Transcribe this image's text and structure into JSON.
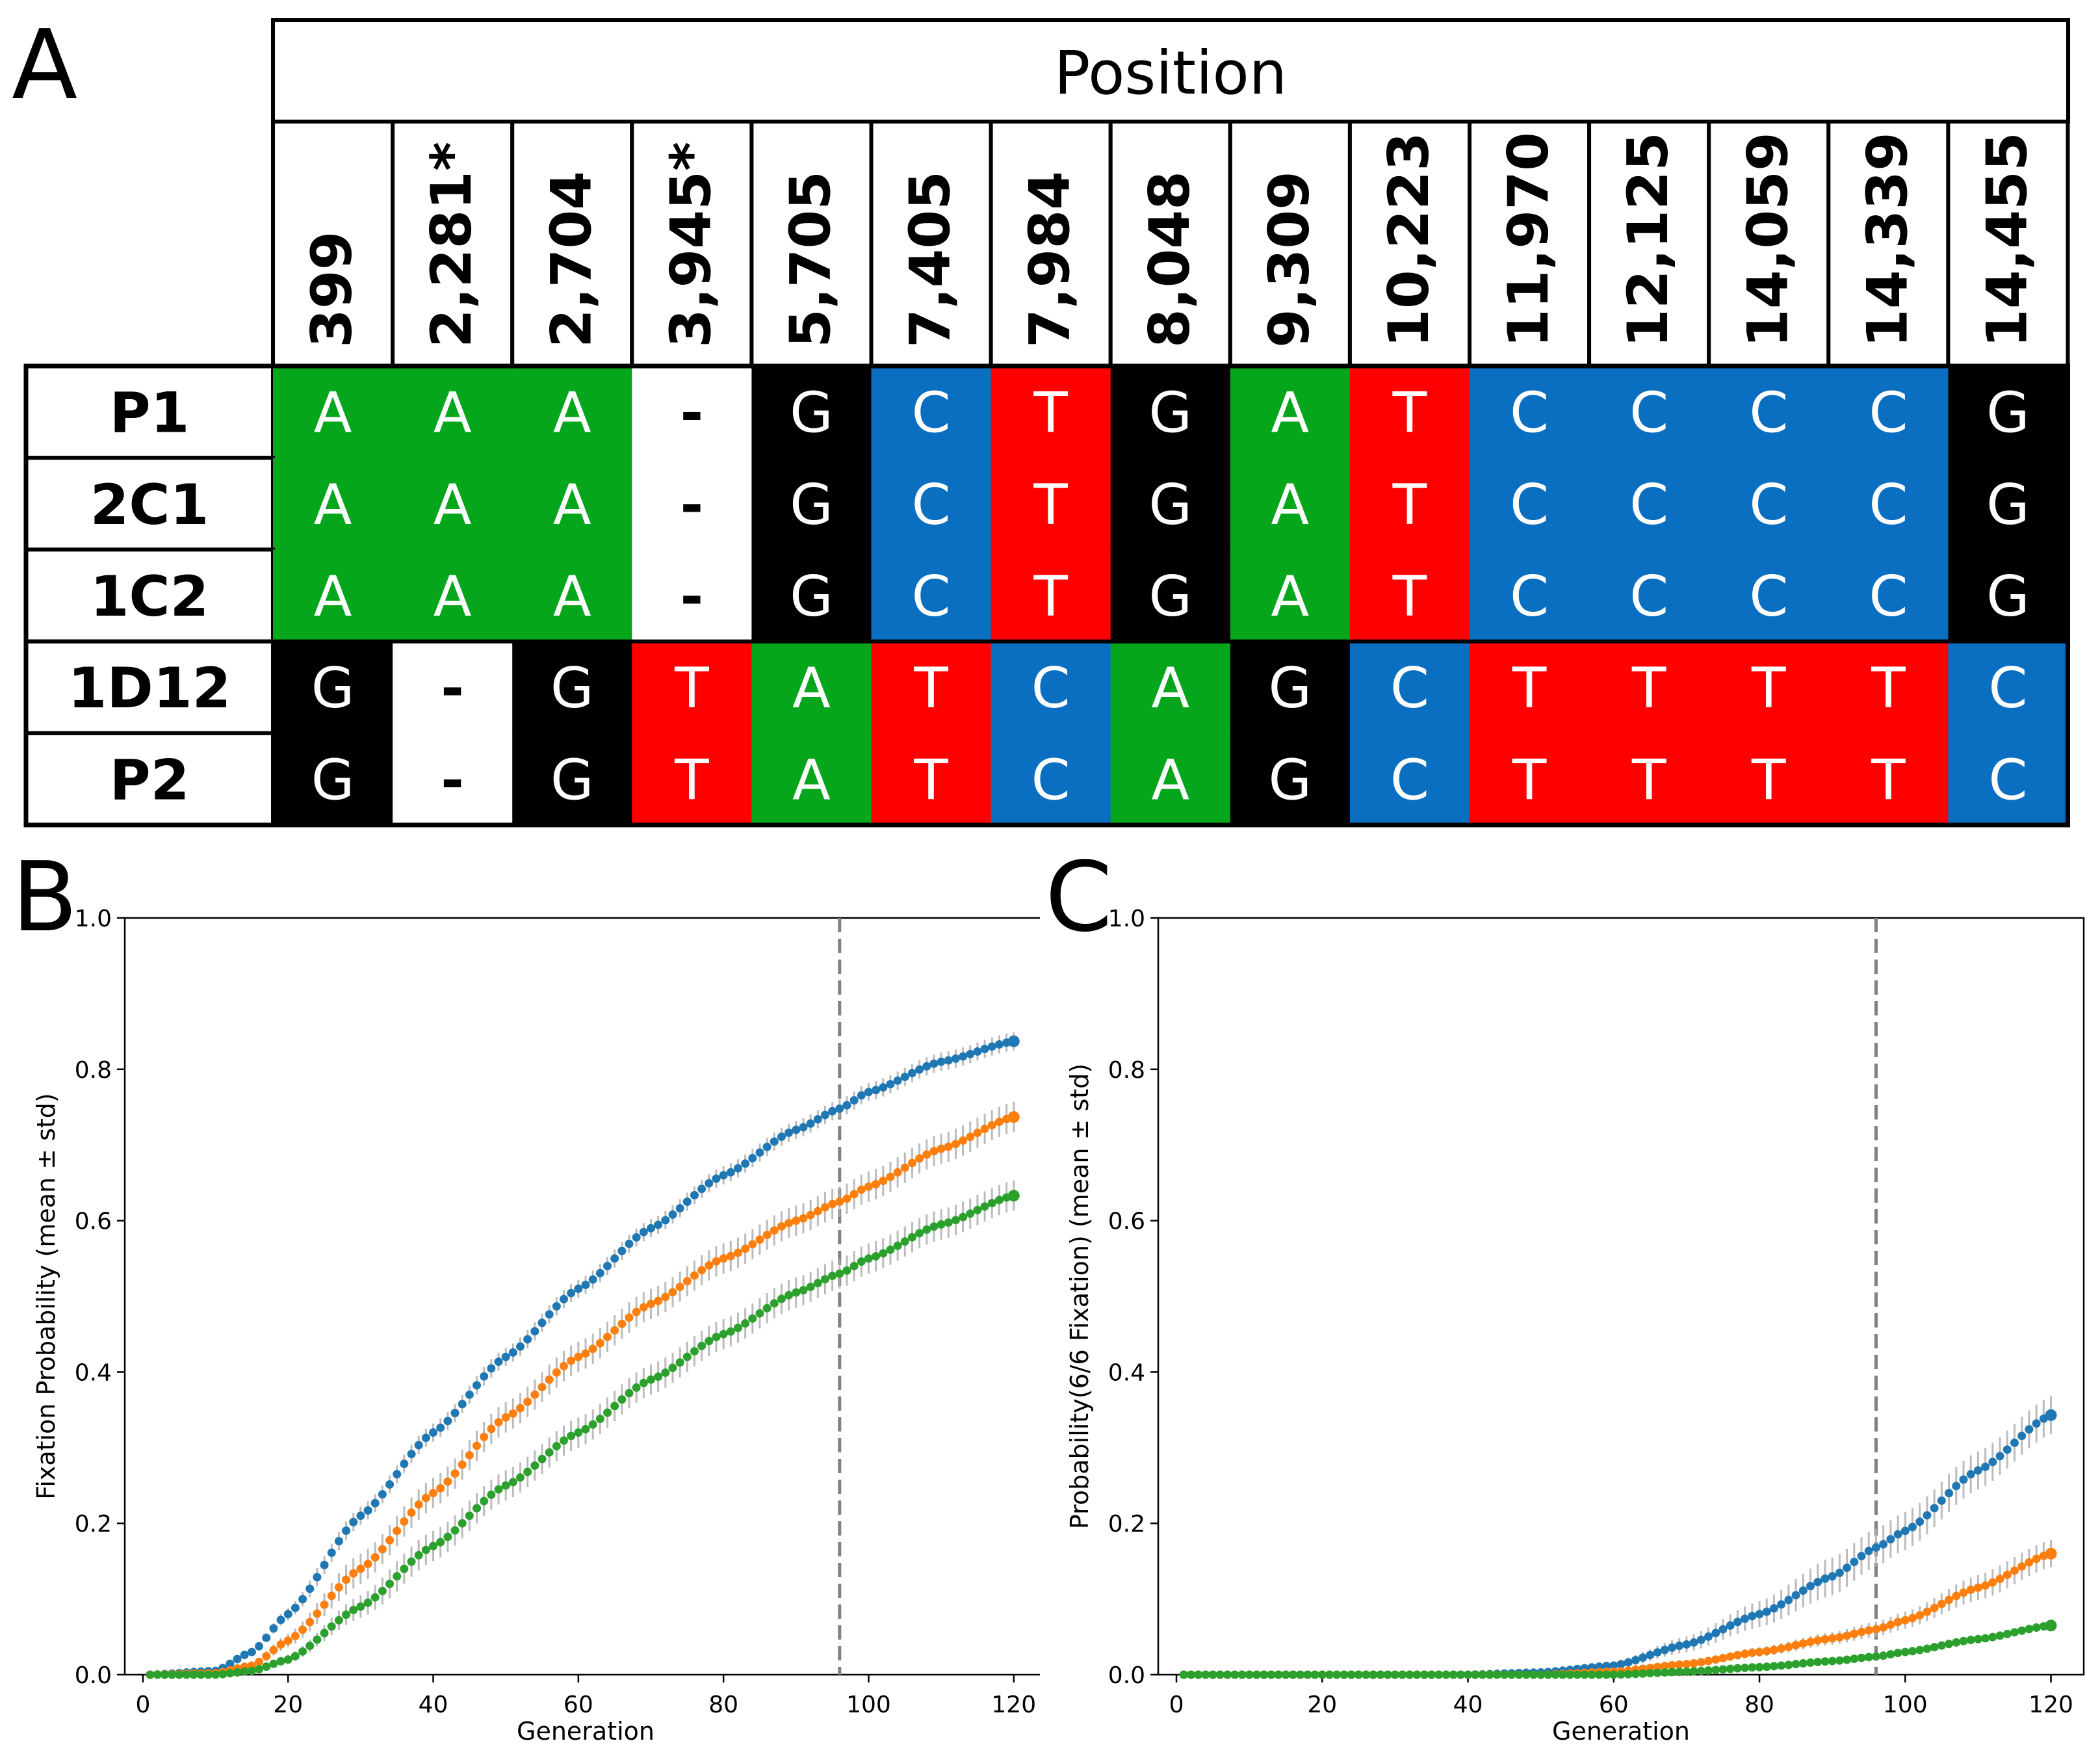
{
  "panel_labels": {
    "a": "A",
    "b": "B",
    "c": "C"
  },
  "colors": {
    "A": "#05a51c",
    "C": "#0a6ec1",
    "G": "#000000",
    "T": "#ff0000",
    "-": "#ffffff",
    "blue": "#1f77b4",
    "orange": "#ff7f0e",
    "green": "#2ca02c",
    "err": "#b0b0b0",
    "vline": "#808080"
  },
  "table": {
    "header": "Position",
    "positions": [
      "399",
      "2,281*",
      "2,704",
      "3,945*",
      "5,705",
      "7,405",
      "7,984",
      "8,048",
      "9,309",
      "10,223",
      "11,970",
      "12,125",
      "14,059",
      "14,339",
      "14,455"
    ],
    "rows": [
      {
        "label": "P1",
        "bases": [
          "A",
          "A",
          "A",
          "-",
          "G",
          "C",
          "T",
          "G",
          "A",
          "T",
          "C",
          "C",
          "C",
          "C",
          "G"
        ]
      },
      {
        "label": "2C1",
        "bases": [
          "A",
          "A",
          "A",
          "-",
          "G",
          "C",
          "T",
          "G",
          "A",
          "T",
          "C",
          "C",
          "C",
          "C",
          "G"
        ]
      },
      {
        "label": "1C2",
        "bases": [
          "A",
          "A",
          "A",
          "-",
          "G",
          "C",
          "T",
          "G",
          "A",
          "T",
          "C",
          "C",
          "C",
          "C",
          "G"
        ]
      },
      {
        "label": "1D12",
        "bases": [
          "G",
          "-",
          "G",
          "T",
          "A",
          "T",
          "C",
          "A",
          "G",
          "C",
          "T",
          "T",
          "T",
          "T",
          "C"
        ]
      },
      {
        "label": "P2",
        "bases": [
          "G",
          "-",
          "G",
          "T",
          "A",
          "T",
          "C",
          "A",
          "G",
          "C",
          "T",
          "T",
          "T",
          "T",
          "C"
        ]
      }
    ]
  },
  "chart_data": [
    {
      "type": "scatter",
      "panel": "B",
      "xlabel": "Generation",
      "ylabel": "Fixation Probability (mean ± std)",
      "xlim": [
        -2.5,
        124.5
      ],
      "ylim": [
        0,
        1.0
      ],
      "xticks": [
        0,
        20,
        40,
        60,
        80,
        100,
        120
      ],
      "yticks": [
        0.0,
        0.2,
        0.4,
        0.6,
        0.8,
        1.0
      ],
      "ytick_labels": [
        "0.0",
        "0.2",
        "0.4",
        "0.6",
        "0.8",
        "1.0"
      ],
      "vline_x": 96,
      "generations": [
        1,
        120
      ],
      "series": [
        {
          "name": "blue",
          "color": "blue",
          "points": [
            [
              1,
              0
            ],
            [
              10,
              0.005
            ],
            [
              15,
              0.03
            ],
            [
              20,
              0.08
            ],
            [
              30,
              0.21
            ],
            [
              40,
              0.32
            ],
            [
              50,
              0.42
            ],
            [
              60,
              0.51
            ],
            [
              70,
              0.59
            ],
            [
              80,
              0.66
            ],
            [
              90,
              0.72
            ],
            [
              96,
              0.748
            ],
            [
              100,
              0.77
            ],
            [
              110,
              0.81
            ],
            [
              120,
              0.837
            ]
          ],
          "std": 0.012
        },
        {
          "name": "orange",
          "color": "orange",
          "points": [
            [
              1,
              0
            ],
            [
              10,
              0.002
            ],
            [
              15,
              0.012
            ],
            [
              20,
              0.045
            ],
            [
              30,
              0.14
            ],
            [
              40,
              0.24
            ],
            [
              50,
              0.34
            ],
            [
              60,
              0.42
            ],
            [
              70,
              0.49
            ],
            [
              80,
              0.55
            ],
            [
              90,
              0.6
            ],
            [
              96,
              0.625
            ],
            [
              100,
              0.645
            ],
            [
              110,
              0.695
            ],
            [
              120,
              0.737
            ]
          ],
          "std": 0.02
        },
        {
          "name": "green",
          "color": "green",
          "points": [
            [
              1,
              0
            ],
            [
              10,
              0
            ],
            [
              15,
              0.005
            ],
            [
              20,
              0.02
            ],
            [
              30,
              0.09
            ],
            [
              40,
              0.17
            ],
            [
              50,
              0.25
            ],
            [
              60,
              0.32
            ],
            [
              70,
              0.39
            ],
            [
              80,
              0.45
            ],
            [
              90,
              0.505
            ],
            [
              96,
              0.53
            ],
            [
              100,
              0.55
            ],
            [
              110,
              0.595
            ],
            [
              120,
              0.633
            ]
          ],
          "std": 0.02
        }
      ]
    },
    {
      "type": "scatter",
      "panel": "C",
      "xlabel": "Generation",
      "ylabel": "Probability(6/6 Fixation) (mean ± std)",
      "xlim": [
        -2.5,
        124.5
      ],
      "ylim": [
        0,
        1.0
      ],
      "xticks": [
        0,
        20,
        40,
        60,
        80,
        100,
        120
      ],
      "yticks": [
        0.0,
        0.2,
        0.4,
        0.6,
        0.8,
        1.0
      ],
      "ytick_labels": [
        "0.0",
        "0.2",
        "0.4",
        "0.6",
        "0.8",
        "1.0"
      ],
      "vline_x": 96,
      "generations": [
        1,
        120
      ],
      "series": [
        {
          "name": "blue",
          "color": "blue",
          "points": [
            [
              1,
              0
            ],
            [
              40,
              0
            ],
            [
              50,
              0.003
            ],
            [
              60,
              0.012
            ],
            [
              70,
              0.04
            ],
            [
              80,
              0.08
            ],
            [
              90,
              0.13
            ],
            [
              96,
              0.168
            ],
            [
              100,
              0.19
            ],
            [
              110,
              0.27
            ],
            [
              120,
              0.343
            ]
          ],
          "std": 0.025
        },
        {
          "name": "orange",
          "color": "orange",
          "points": [
            [
              1,
              0
            ],
            [
              50,
              0
            ],
            [
              60,
              0.004
            ],
            [
              70,
              0.014
            ],
            [
              80,
              0.03
            ],
            [
              90,
              0.048
            ],
            [
              96,
              0.06
            ],
            [
              100,
              0.072
            ],
            [
              110,
              0.115
            ],
            [
              120,
              0.16
            ]
          ],
          "std": 0.018
        },
        {
          "name": "green",
          "color": "green",
          "points": [
            [
              1,
              0
            ],
            [
              60,
              0
            ],
            [
              70,
              0.004
            ],
            [
              80,
              0.01
            ],
            [
              90,
              0.018
            ],
            [
              96,
              0.024
            ],
            [
              100,
              0.03
            ],
            [
              110,
              0.047
            ],
            [
              120,
              0.065
            ]
          ],
          "std": 0.01
        }
      ]
    }
  ]
}
